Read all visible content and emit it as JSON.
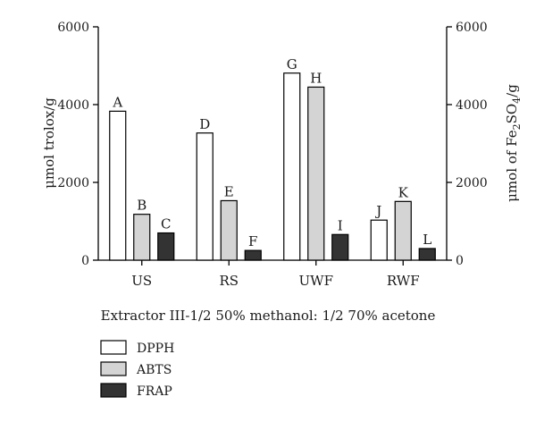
{
  "chart_data": {
    "type": "bar",
    "categories": [
      "US",
      "RS",
      "UWF",
      "RWF"
    ],
    "series": [
      {
        "name": "DPPH",
        "color": "#ffffff",
        "values": [
          3830,
          3270,
          4810,
          1030
        ],
        "labels": [
          "A",
          "D",
          "G",
          "J"
        ]
      },
      {
        "name": "ABTS",
        "color": "#d4d4d4",
        "values": [
          1180,
          1530,
          4450,
          1510
        ],
        "labels": [
          "B",
          "E",
          "H",
          "K"
        ]
      },
      {
        "name": "FRAP",
        "color": "#333333",
        "values": [
          700,
          250,
          660,
          300
        ],
        "labels": [
          "C",
          "F",
          "I",
          "L"
        ]
      }
    ],
    "ylim": [
      0,
      6000
    ],
    "yticks": [
      "0",
      "2000",
      "4000",
      "6000"
    ],
    "ytick_values": [
      0,
      2000,
      4000,
      6000
    ],
    "xlabel": "Extractor III-1/2 50% methanol: 1/2 70% acetone",
    "ylabel_left": "μmol trolox/g",
    "ylabel_right": {
      "prefix": "μmol of Fe",
      "sub1": "2",
      "mid": "SO",
      "sub2": "4",
      "suffix": "/g"
    },
    "legend_position": "bottom-left",
    "grid": false
  }
}
